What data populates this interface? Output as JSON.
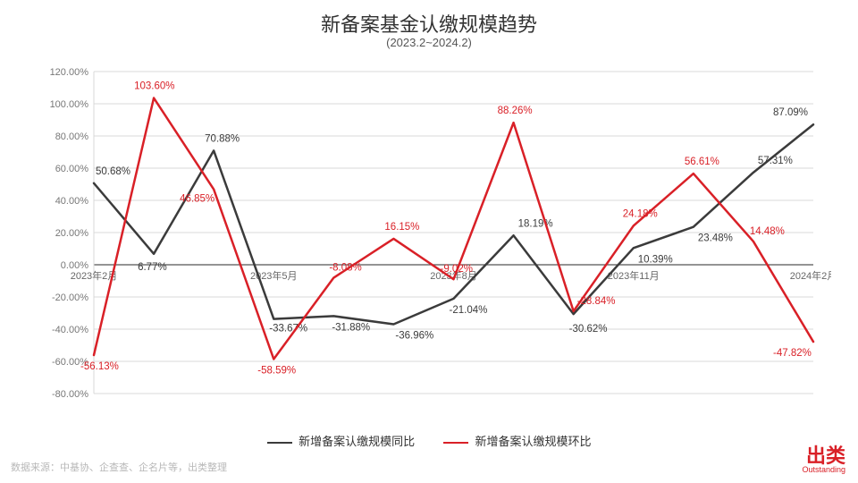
{
  "title": "新备案基金认缴规模趋势",
  "subtitle": "(2023.2~2024.2)",
  "source_note": "数据来源：中基协、企查查、企名片等，出类整理",
  "brand": {
    "cn": "出类",
    "en": "Outstanding"
  },
  "chart": {
    "type": "line",
    "ylabel_suffix": "%",
    "ylim": [
      -80,
      120
    ],
    "ytick_step": 20,
    "grid_color": "#d9d9d9",
    "axis_font_size": 11,
    "label_font_size": 11.5,
    "background_color": "#ffffff",
    "x_categories": [
      "2023年2月",
      "2023年3月",
      "2023年4月",
      "2023年5月",
      "2023年6月",
      "2023年7月",
      "2023年8月",
      "2023年9月",
      "2023年10月",
      "2023年11月",
      "2023年12月",
      "2024年1月",
      "2024年2月"
    ],
    "x_ticks_shown": [
      "2023年2月",
      "2023年5月",
      "2023年8月",
      "2023年11月",
      "2024年2月"
    ],
    "series": [
      {
        "name": "新增备案认缴规模同比",
        "color": "#3b3b3b",
        "line_width": 2.5,
        "values": [
          50.68,
          6.77,
          70.88,
          -33.67,
          -31.88,
          -36.96,
          -21.04,
          18.19,
          -30.62,
          10.39,
          23.48,
          57.31,
          87.09
        ],
        "label_offsets": [
          {
            "dx": 2,
            "dy": -10
          },
          {
            "dx": -18,
            "dy": 18
          },
          {
            "dx": -10,
            "dy": -10
          },
          {
            "dx": -5,
            "dy": 14
          },
          {
            "dx": -2,
            "dy": 16
          },
          {
            "dx": 2,
            "dy": 16
          },
          {
            "dx": -5,
            "dy": 16
          },
          {
            "dx": 5,
            "dy": -10
          },
          {
            "dx": -5,
            "dy": 20
          },
          {
            "dx": 5,
            "dy": 16
          },
          {
            "dx": 5,
            "dy": 16
          },
          {
            "dx": 5,
            "dy": -10
          },
          {
            "dx": -45,
            "dy": -10
          }
        ]
      },
      {
        "name": "新增备案认缴规模环比",
        "color": "#d92027",
        "line_width": 2.5,
        "values": [
          -56.13,
          103.6,
          46.85,
          -58.59,
          -8.08,
          16.15,
          -9.02,
          88.26,
          -28.84,
          24.18,
          56.61,
          14.48,
          -47.82
        ],
        "label_offsets": [
          {
            "dx": -15,
            "dy": 16
          },
          {
            "dx": -22,
            "dy": -10
          },
          {
            "dx": -38,
            "dy": 14
          },
          {
            "dx": -18,
            "dy": 16
          },
          {
            "dx": -5,
            "dy": -8
          },
          {
            "dx": -10,
            "dy": -10
          },
          {
            "dx": -15,
            "dy": -8
          },
          {
            "dx": -18,
            "dy": -10
          },
          {
            "dx": 4,
            "dy": -8
          },
          {
            "dx": -12,
            "dy": -10
          },
          {
            "dx": -10,
            "dy": -10
          },
          {
            "dx": -4,
            "dy": -8
          },
          {
            "dx": -45,
            "dy": 16
          }
        ]
      }
    ],
    "legend": {
      "position": "bottom-center"
    }
  }
}
